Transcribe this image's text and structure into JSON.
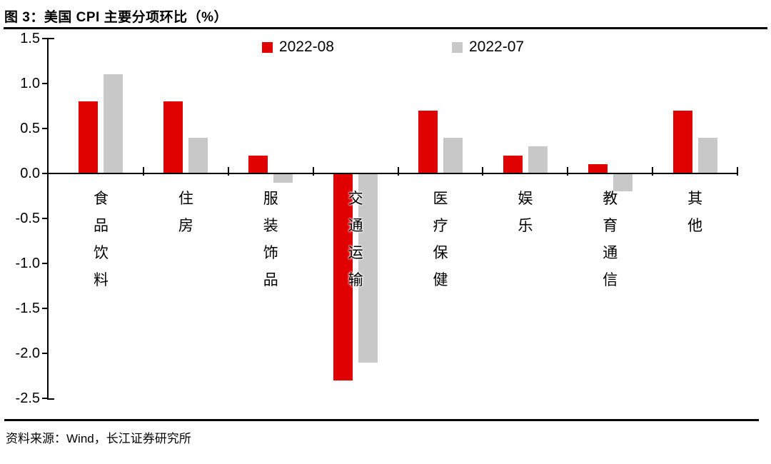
{
  "figure": {
    "title": "图 3：美国 CPI 主要分项环比（%）",
    "source_note": "资料来源：Wind，长江证券研究所"
  },
  "colors": {
    "series_2022_08": "#e00000",
    "series_2022_07": "#c8c8c8",
    "axis": "#000000"
  },
  "chart_data": {
    "type": "bar",
    "title": "美国 CPI 主要分项环比（%）",
    "categories": [
      "食品饮料",
      "住房",
      "服装饰品",
      "交通运输",
      "医疗保健",
      "娱乐",
      "教育通信",
      "其他"
    ],
    "series": [
      {
        "name": "2022-08",
        "color": "#e00000",
        "values": [
          0.8,
          0.8,
          0.2,
          -2.3,
          0.7,
          0.2,
          0.1,
          0.7
        ]
      },
      {
        "name": "2022-07",
        "color": "#c8c8c8",
        "values": [
          1.1,
          0.4,
          -0.1,
          -2.1,
          0.4,
          0.3,
          -0.2,
          0.4
        ]
      }
    ],
    "ylim": [
      -2.5,
      1.5
    ],
    "ytick_step": 0.5,
    "yticks": [
      "1.5",
      "1.0",
      "0.5",
      "0.0",
      "-0.5",
      "-1.0",
      "-1.5",
      "-2.0",
      "-2.5"
    ],
    "legend_position": "top-center",
    "grid": false,
    "category_label_orientation": "vertical-stacked"
  }
}
